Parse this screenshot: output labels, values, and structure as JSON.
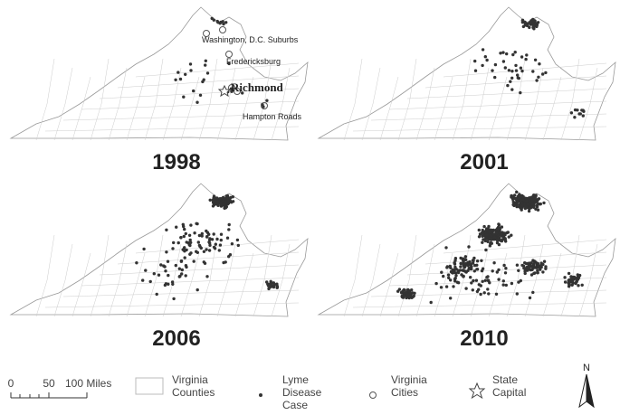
{
  "panels": [
    {
      "year": "1998"
    },
    {
      "year": "2001"
    },
    {
      "year": "2006"
    },
    {
      "year": "2010"
    }
  ],
  "city_labels": [
    "Washington, D.C. Suburbs",
    "Fredericksburg",
    "Richmond",
    "Hampton Roads"
  ],
  "scale_bar": {
    "labels": [
      "0",
      "50",
      "100 Miles"
    ]
  },
  "legend": [
    {
      "lines": [
        "Virginia",
        "Counties"
      ]
    },
    {
      "lines": [
        "Lyme",
        "Disease",
        "Case"
      ]
    },
    {
      "lines": [
        "Virginia",
        "Cities"
      ]
    },
    {
      "lines": [
        "State",
        "Capital"
      ]
    }
  ],
  "north_arrow": "N"
}
